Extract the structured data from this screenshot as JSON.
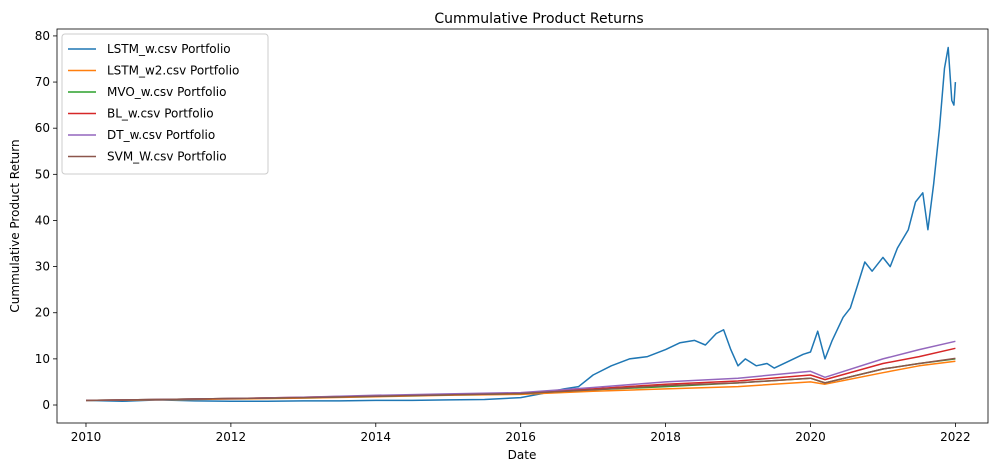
{
  "chart_data": {
    "type": "line",
    "title": "Cummulative Product Returns",
    "xlabel": "Date",
    "ylabel": "Cummulative Product Return",
    "xlim": [
      2009.6,
      2022.45
    ],
    "ylim": [
      -3.9,
      81.5
    ],
    "xticks": [
      2010,
      2012,
      2014,
      2016,
      2018,
      2020,
      2022
    ],
    "xtick_labels": [
      "2010",
      "2012",
      "2014",
      "2016",
      "2018",
      "2020",
      "2022"
    ],
    "yticks": [
      0,
      10,
      20,
      30,
      40,
      50,
      60,
      70,
      80
    ],
    "ytick_labels": [
      "0",
      "10",
      "20",
      "30",
      "40",
      "50",
      "60",
      "70",
      "80"
    ],
    "grid": false,
    "legend_position": "top-left",
    "series": [
      {
        "name": "LSTM_w.csv Portfolio",
        "color": "#1f77b4",
        "points": [
          [
            2010.0,
            1.0
          ],
          [
            2010.5,
            0.8
          ],
          [
            2011.0,
            1.1
          ],
          [
            2011.5,
            0.9
          ],
          [
            2012.0,
            0.8
          ],
          [
            2012.5,
            0.8
          ],
          [
            2013.0,
            0.9
          ],
          [
            2013.5,
            0.9
          ],
          [
            2014.0,
            1.0
          ],
          [
            2014.5,
            1.0
          ],
          [
            2015.0,
            1.1
          ],
          [
            2015.5,
            1.2
          ],
          [
            2016.0,
            1.6
          ],
          [
            2016.3,
            2.5
          ],
          [
            2016.6,
            3.5
          ],
          [
            2016.8,
            4.0
          ],
          [
            2017.0,
            6.5
          ],
          [
            2017.25,
            8.5
          ],
          [
            2017.5,
            10.0
          ],
          [
            2017.75,
            10.5
          ],
          [
            2018.0,
            12.0
          ],
          [
            2018.2,
            13.5
          ],
          [
            2018.4,
            14.0
          ],
          [
            2018.55,
            13.0
          ],
          [
            2018.7,
            15.5
          ],
          [
            2018.8,
            16.3
          ],
          [
            2018.9,
            12.0
          ],
          [
            2019.0,
            8.5
          ],
          [
            2019.1,
            10.0
          ],
          [
            2019.25,
            8.5
          ],
          [
            2019.4,
            9.0
          ],
          [
            2019.5,
            8.0
          ],
          [
            2019.7,
            9.5
          ],
          [
            2019.9,
            11.0
          ],
          [
            2020.0,
            11.5
          ],
          [
            2020.1,
            16.0
          ],
          [
            2020.2,
            10.0
          ],
          [
            2020.3,
            14.0
          ],
          [
            2020.45,
            19.0
          ],
          [
            2020.55,
            21.0
          ],
          [
            2020.65,
            26.0
          ],
          [
            2020.75,
            31.0
          ],
          [
            2020.85,
            29.0
          ],
          [
            2021.0,
            32.0
          ],
          [
            2021.1,
            30.0
          ],
          [
            2021.2,
            34.0
          ],
          [
            2021.35,
            38.0
          ],
          [
            2021.45,
            44.0
          ],
          [
            2021.55,
            46.0
          ],
          [
            2021.62,
            38.0
          ],
          [
            2021.7,
            48.0
          ],
          [
            2021.78,
            60.0
          ],
          [
            2021.85,
            73.0
          ],
          [
            2021.9,
            77.5
          ],
          [
            2021.95,
            66.0
          ],
          [
            2021.98,
            65.0
          ],
          [
            2022.0,
            70.0
          ]
        ]
      },
      {
        "name": "LSTM_w2.csv Portfolio",
        "color": "#ff7f0e",
        "points": [
          [
            2010.0,
            1.0
          ],
          [
            2011.0,
            1.1
          ],
          [
            2012.0,
            1.3
          ],
          [
            2013.0,
            1.5
          ],
          [
            2014.0,
            1.8
          ],
          [
            2015.0,
            2.1
          ],
          [
            2016.0,
            2.3
          ],
          [
            2017.0,
            3.0
          ],
          [
            2018.0,
            3.5
          ],
          [
            2019.0,
            4.0
          ],
          [
            2020.0,
            5.0
          ],
          [
            2020.2,
            4.5
          ],
          [
            2021.0,
            7.0
          ],
          [
            2021.5,
            8.5
          ],
          [
            2022.0,
            9.5
          ]
        ]
      },
      {
        "name": "MVO_w.csv Portfolio",
        "color": "#2ca02c",
        "points": [
          [
            2010.0,
            1.0
          ],
          [
            2011.0,
            1.2
          ],
          [
            2012.0,
            1.4
          ],
          [
            2013.0,
            1.6
          ],
          [
            2014.0,
            1.9
          ],
          [
            2015.0,
            2.2
          ],
          [
            2016.0,
            2.5
          ],
          [
            2017.0,
            3.3
          ],
          [
            2018.0,
            4.0
          ],
          [
            2019.0,
            4.8
          ],
          [
            2020.0,
            5.8
          ],
          [
            2020.2,
            4.8
          ],
          [
            2021.0,
            7.8
          ],
          [
            2021.5,
            9.0
          ],
          [
            2022.0,
            10.0
          ]
        ]
      },
      {
        "name": "BL_w.csv Portfolio",
        "color": "#d62728",
        "points": [
          [
            2010.0,
            1.0
          ],
          [
            2011.0,
            1.2
          ],
          [
            2012.0,
            1.4
          ],
          [
            2013.0,
            1.7
          ],
          [
            2014.0,
            2.0
          ],
          [
            2015.0,
            2.3
          ],
          [
            2016.0,
            2.6
          ],
          [
            2017.0,
            3.5
          ],
          [
            2018.0,
            4.5
          ],
          [
            2019.0,
            5.2
          ],
          [
            2020.0,
            6.5
          ],
          [
            2020.2,
            5.5
          ],
          [
            2021.0,
            9.0
          ],
          [
            2021.5,
            10.5
          ],
          [
            2022.0,
            12.3
          ]
        ]
      },
      {
        "name": "DT_w.csv Portfolio",
        "color": "#9467bd",
        "points": [
          [
            2010.0,
            1.0
          ],
          [
            2011.0,
            1.2
          ],
          [
            2012.0,
            1.4
          ],
          [
            2013.0,
            1.7
          ],
          [
            2014.0,
            2.1
          ],
          [
            2015.0,
            2.4
          ],
          [
            2016.0,
            2.7
          ],
          [
            2017.0,
            3.8
          ],
          [
            2018.0,
            5.0
          ],
          [
            2019.0,
            5.8
          ],
          [
            2020.0,
            7.3
          ],
          [
            2020.2,
            6.0
          ],
          [
            2021.0,
            10.0
          ],
          [
            2021.5,
            12.0
          ],
          [
            2022.0,
            13.8
          ]
        ]
      },
      {
        "name": "SVM_W.csv Portfolio",
        "color": "#8c564b",
        "points": [
          [
            2010.0,
            1.0
          ],
          [
            2011.0,
            1.2
          ],
          [
            2012.0,
            1.4
          ],
          [
            2013.0,
            1.6
          ],
          [
            2014.0,
            1.9
          ],
          [
            2015.0,
            2.2
          ],
          [
            2016.0,
            2.5
          ],
          [
            2017.0,
            3.3
          ],
          [
            2018.0,
            4.2
          ],
          [
            2019.0,
            4.8
          ],
          [
            2020.0,
            5.8
          ],
          [
            2020.2,
            4.8
          ],
          [
            2021.0,
            7.8
          ],
          [
            2021.5,
            9.0
          ],
          [
            2022.0,
            10.1
          ]
        ]
      }
    ]
  }
}
